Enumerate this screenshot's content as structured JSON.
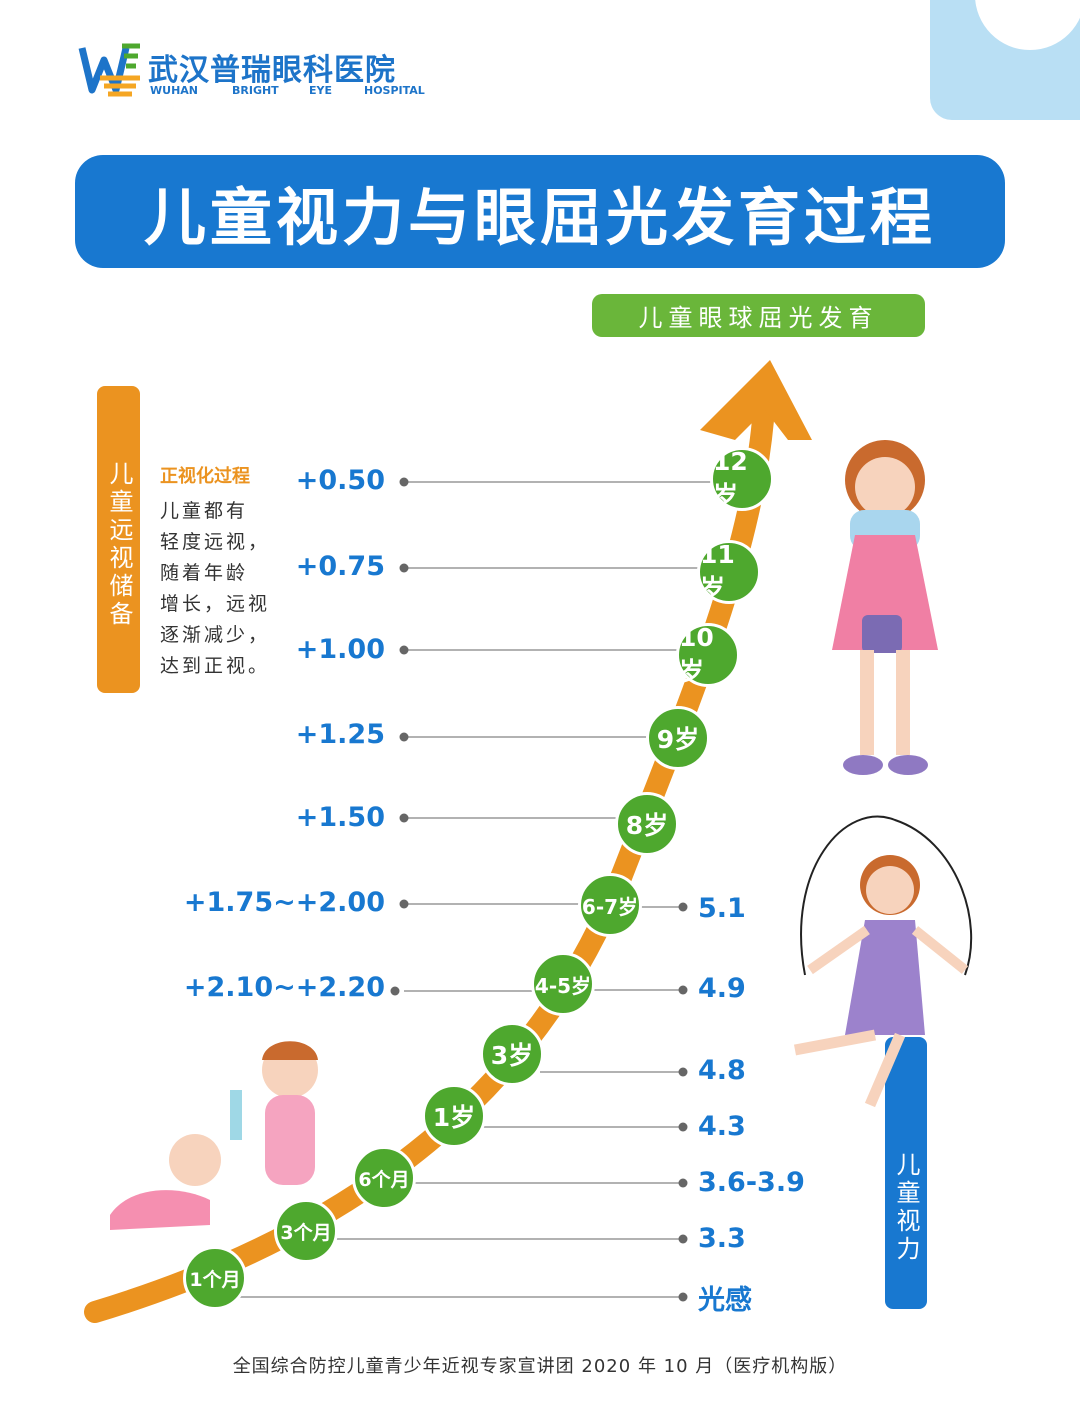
{
  "logo": {
    "name_cn": "武汉普瑞眼科医院",
    "en_words": [
      "WUHAN",
      "BRIGHT",
      "EYE",
      "HOSPITAL"
    ]
  },
  "title": "儿童视力与眼屈光发育过程",
  "curve_label": "儿童眼球屈光发育",
  "left_axis_label": "儿童远视储备",
  "right_axis_label": "儿童视力",
  "note": {
    "title": "正视化过程",
    "lines": [
      "儿童都有",
      "轻度远视，",
      "随着年龄",
      "增长，远视",
      "逐渐减少，",
      "达到正视。"
    ]
  },
  "ages": [
    "1个月",
    "3个月",
    "6个月",
    "1岁",
    "3岁",
    "4-5岁",
    "6-7岁",
    "8岁",
    "9岁",
    "10岁",
    "11岁",
    "12岁"
  ],
  "hyperopia_reserve": [
    {
      "age": "12岁",
      "value": "+0.50"
    },
    {
      "age": "11岁",
      "value": "+0.75"
    },
    {
      "age": "10岁",
      "value": "+1.00"
    },
    {
      "age": "9岁",
      "value": "+1.25"
    },
    {
      "age": "8岁",
      "value": "+1.50"
    },
    {
      "age": "6-7岁",
      "value": "+1.75~+2.00"
    },
    {
      "age": "4-5岁",
      "value": "+2.10~+2.20"
    }
  ],
  "visual_acuity": [
    {
      "age": "6-7岁",
      "value": "5.1"
    },
    {
      "age": "4-5岁",
      "value": "4.9"
    },
    {
      "age": "3岁",
      "value": "4.8"
    },
    {
      "age": "1岁",
      "value": "4.3"
    },
    {
      "age": "6个月",
      "value": "3.6-3.9"
    },
    {
      "age": "3个月",
      "value": "3.3"
    },
    {
      "age": "1个月",
      "value": "光感"
    }
  ],
  "footer": "全国综合防控儿童青少年近视专家宣讲团 2020 年 10 月（医疗机构版）",
  "colors": {
    "blue": "#1878d0",
    "orange": "#eb9320",
    "green": "#4ea82e",
    "light_green": "#6ab63a",
    "deco": "#b9dff4"
  }
}
